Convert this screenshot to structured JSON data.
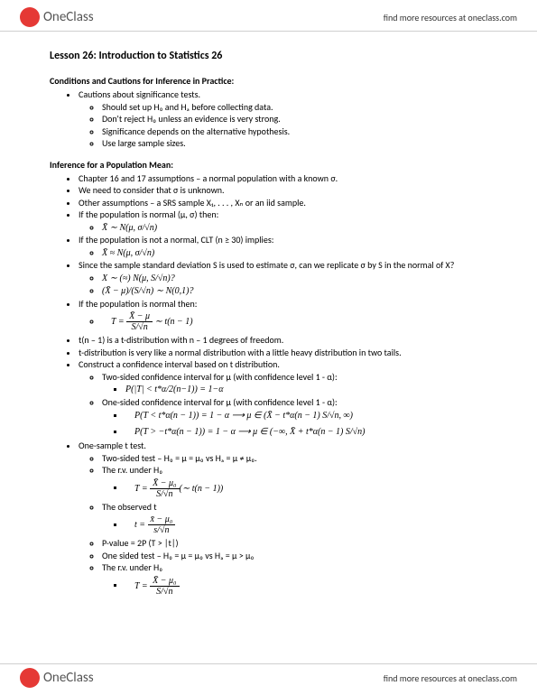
{
  "header": {
    "logo_text": "OneClass",
    "link_text": "find more resources at oneclass.com"
  },
  "footer": {
    "logo_text": "OneClass",
    "link_text": "find more resources at oneclass.com"
  },
  "title": "Lesson 26: Introduction to Statistics 26",
  "section1": {
    "heading": "Conditions and Cautions for Inference in Practice:",
    "b1": "Cautions about significance tests.",
    "s1": "Should set up H₀ and Hₐ before collecting data.",
    "s2": "Don't reject H₀ unless an evidence is very strong.",
    "s3": "Significance depends on the alternative hypothesis.",
    "s4": "Use large sample sizes."
  },
  "section2": {
    "heading": "Inference for a Population Mean:",
    "b1": "Chapter 16 and 17 assumptions – a normal population with a known σ.",
    "b2": "We need to consider that σ is unknown.",
    "b3": "Other assumptions – a SRS sample X₁, . . . , Xₙ or an iid sample.",
    "b4": "If the population is normal (μ, σ) then:",
    "b4_f": "X̄ ∼ N(μ, σ/√n)",
    "b5": "If the population is not a normal, CLT (n ≥ 30) implies:",
    "b5_f": "X̄ ≈ N(μ, σ/√n)",
    "b6": "Since the sample standard deviation S is used to estimate σ, can we replicate σ by S in the normal of X?",
    "b6_f1": "X ∼ (≈) N(μ, S/√n)?",
    "b6_f2": "(X̄ − μ)/(S/√n) ∼ N(0,1)?",
    "b7": "If the population is normal then:",
    "b7_num": "X̄ − μ",
    "b7_den": "S/√n",
    "b7_rhs": " ∼ t(n − 1)",
    "b8": "t(n – 1) is a t-distribution with n – 1 degrees of freedom.",
    "b9": "t-distribution is very like a normal distribution with a little heavy distribution in two tails.",
    "b10": "Construct a confidence interval based on t distribution.",
    "b10_s1": "Two-sided confidence interval for μ (with confidence level 1 - α):",
    "b10_s1_f": "P(|T| < t*α/2(n−1)) = 1−α",
    "b10_s2": "One-sided confidence interval for μ (with confidence level 1 - α):",
    "b10_s2_f1": "P(T < t*α(n − 1)) = 1 − α ⟶ μ ∈ (X̄ − t*α(n − 1) S/√n, ∞)",
    "b10_s2_f2": "P(T > −t*α(n − 1)) = 1 − α ⟶ μ ∈ (−∞, X̄ + t*α(n − 1) S/√n)",
    "b11": "One-sample t test.",
    "b11_s1": "Two-sided test – H₀ = μ = μ₀ vs Hₐ = μ ≠ μ₀.",
    "b11_s2": "The r.v. under H₀",
    "b11_s2_num": "X̄ − μ₀",
    "b11_s2_den": "S/√n",
    "b11_s2_rhs": "(∼ t(n − 1))",
    "b11_s3": "The observed t",
    "b11_s3_num": "x̄ − μ₀",
    "b11_s3_den": "s/√n",
    "b11_s4": "P-value = 2P (T > |t|)",
    "b11_s5": "One sided test – H₀ = μ = μ₀ vs Hₐ = μ > μ₀",
    "b11_s6": "The r.v. under H₀",
    "b11_s6_num": "X̄ − μ₀",
    "b11_s6_den": "S/√n"
  }
}
